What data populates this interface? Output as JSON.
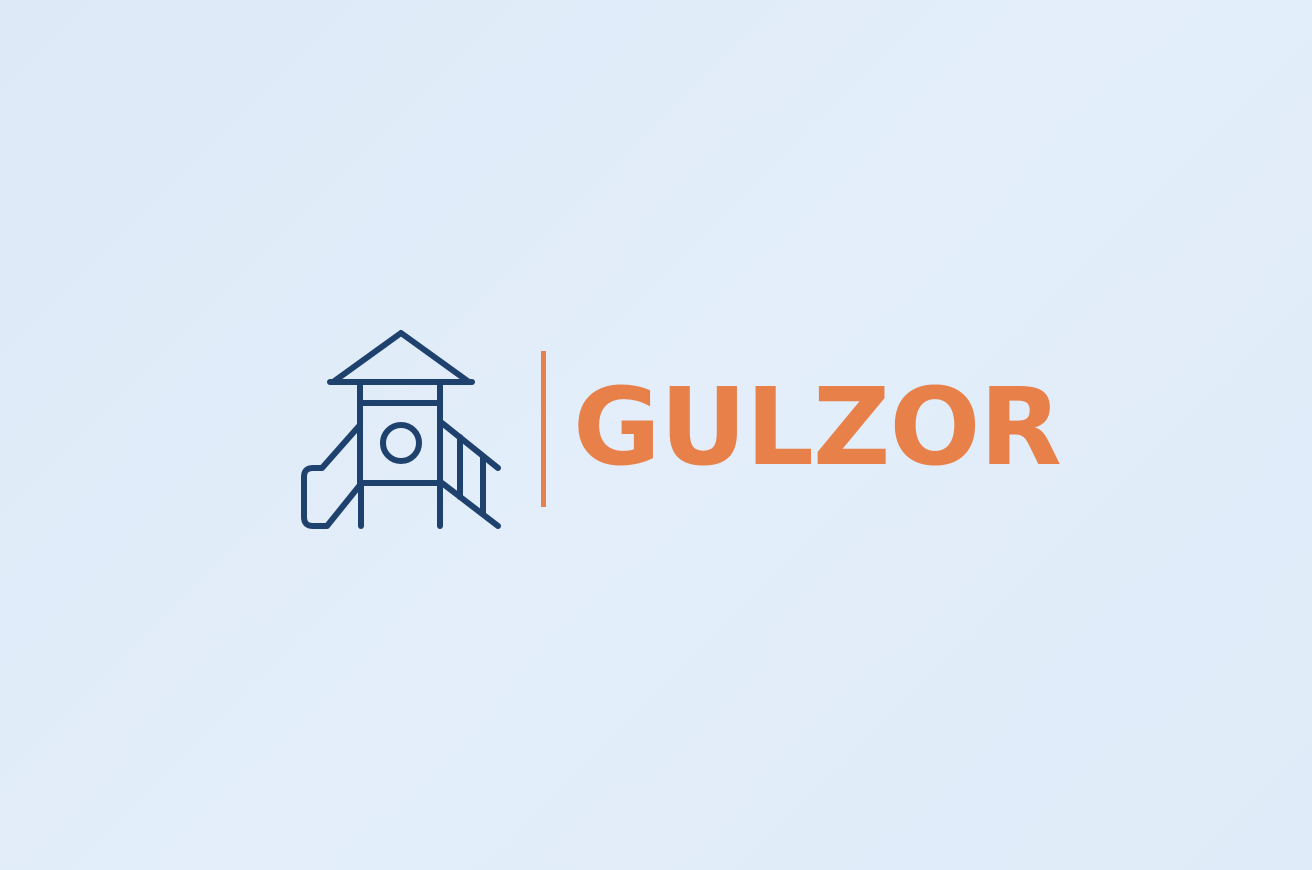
{
  "logo": {
    "icon": "playground-tower-icon",
    "brand_name": "GULZOR"
  },
  "colors": {
    "background": "#e0ecf8",
    "icon_stroke": "#1e416e",
    "accent": "#e8804a"
  }
}
